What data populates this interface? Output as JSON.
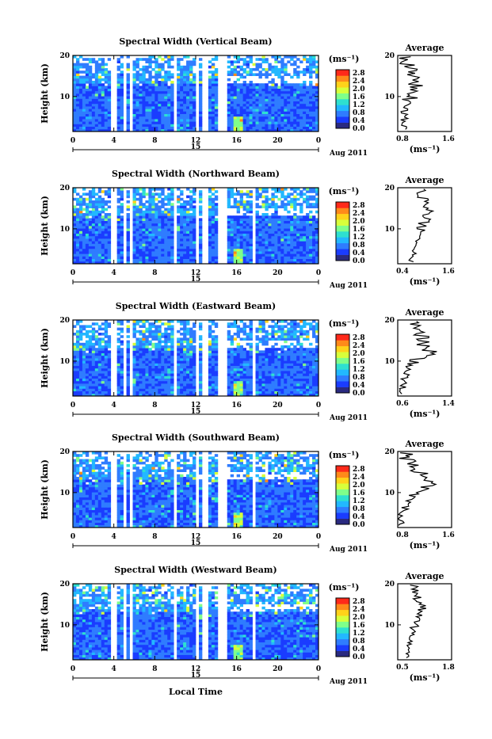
{
  "figure": {
    "x_axis_label": "Local Time",
    "date_label": "Aug 2011",
    "day_label": "15",
    "x_ticks": [
      "0",
      "4",
      "8",
      "12",
      "16",
      "20",
      "0"
    ],
    "y_label": "Height (km)",
    "y_ticks": [
      "20",
      "10"
    ],
    "colorbar_unit": "(ms⁻¹)",
    "colorbar_ticks": [
      "2.8",
      "2.4",
      "2.0",
      "1.6",
      "1.2",
      "0.8",
      "0.4",
      "0.0"
    ],
    "colormap": [
      "#2a2a80",
      "#1a3cff",
      "#2f7cff",
      "#22b8ff",
      "#2ee0d0",
      "#7fff8a",
      "#d8ff3a",
      "#ffd21a",
      "#ff8a1a",
      "#ff2a1a"
    ],
    "average_title": "Average",
    "average_unit": "(ms⁻¹)",
    "average_y_ticks": [
      "20",
      "10"
    ]
  },
  "chart_data": [
    {
      "type": "heatmap",
      "title": "Spectral Width (Vertical Beam)",
      "xlabel": "",
      "ylabel": "Height (km)",
      "xlim": [
        0,
        24
      ],
      "ylim": [
        1.5,
        20
      ],
      "colorbar_range": [
        0.0,
        2.8
      ],
      "data_gaps_hours": [
        [
          3.5,
          4.2
        ],
        [
          4.8,
          5.1
        ],
        [
          5.4,
          5.8
        ],
        [
          9.6,
          10.0
        ],
        [
          11.9,
          12.2
        ],
        [
          12.6,
          13.0
        ],
        [
          14.0,
          14.8
        ]
      ],
      "profile": {
        "title": "Average",
        "xlim_labels": [
          "0.8",
          "1.6"
        ],
        "heights_km": [
          2,
          4,
          6,
          8,
          10,
          12,
          14,
          16,
          18,
          20
        ],
        "values": [
          0.9,
          0.9,
          0.9,
          0.95,
          1.0,
          1.05,
          1.1,
          1.0,
          0.95,
          0.9
        ]
      }
    },
    {
      "type": "heatmap",
      "title": "Spectral Width (Northward Beam)",
      "xlabel": "",
      "ylabel": "Height (km)",
      "xlim": [
        0,
        24
      ],
      "ylim": [
        1.5,
        20
      ],
      "colorbar_range": [
        0.0,
        2.8
      ],
      "data_gaps_hours": [
        [
          3.5,
          4.2
        ],
        [
          4.8,
          5.1
        ],
        [
          5.4,
          5.8
        ],
        [
          9.6,
          10.0
        ],
        [
          11.9,
          12.2
        ],
        [
          12.6,
          13.0
        ],
        [
          14.0,
          14.8
        ],
        [
          17.5,
          17.8
        ]
      ],
      "profile": {
        "title": "Average",
        "xlim_labels": [
          "0.4",
          "1.6"
        ],
        "heights_km": [
          2,
          4,
          6,
          8,
          10,
          12,
          14,
          16,
          18,
          20
        ],
        "values": [
          0.7,
          0.75,
          0.8,
          0.85,
          0.9,
          1.0,
          1.1,
          1.0,
          0.95,
          0.9
        ]
      }
    },
    {
      "type": "heatmap",
      "title": "Spectral Width (Eastward Beam)",
      "xlabel": "",
      "ylabel": "Height (km)",
      "xlim": [
        0,
        24
      ],
      "ylim": [
        1.5,
        20
      ],
      "colorbar_range": [
        0.0,
        2.8
      ],
      "data_gaps_hours": [
        [
          3.5,
          4.2
        ],
        [
          4.8,
          5.1
        ],
        [
          5.4,
          5.8
        ],
        [
          9.6,
          10.0
        ],
        [
          11.9,
          12.2
        ],
        [
          12.6,
          13.0
        ],
        [
          14.0,
          14.8
        ],
        [
          17.5,
          17.8
        ]
      ],
      "profile": {
        "title": "Average",
        "xlim_labels": [
          "0.6",
          "1.4"
        ],
        "heights_km": [
          2,
          4,
          6,
          8,
          10,
          12,
          14,
          16,
          18,
          20
        ],
        "values": [
          0.65,
          0.7,
          0.7,
          0.75,
          0.85,
          1.1,
          1.0,
          0.95,
          0.9,
          0.9
        ]
      }
    },
    {
      "type": "heatmap",
      "title": "Spectral Width (Southward Beam)",
      "xlabel": "",
      "ylabel": "Height (km)",
      "xlim": [
        0,
        24
      ],
      "ylim": [
        1.5,
        20
      ],
      "colorbar_range": [
        0.0,
        2.8
      ],
      "data_gaps_hours": [
        [
          3.5,
          4.2
        ],
        [
          4.8,
          5.1
        ],
        [
          5.4,
          5.8
        ],
        [
          9.6,
          10.0
        ],
        [
          11.9,
          12.2
        ],
        [
          12.6,
          13.0
        ],
        [
          14.0,
          14.8
        ],
        [
          17.5,
          17.8
        ]
      ],
      "profile": {
        "title": "Average",
        "xlim_labels": [
          "0.8",
          "1.6"
        ],
        "heights_km": [
          2,
          4,
          6,
          8,
          10,
          12,
          14,
          16,
          18,
          20
        ],
        "values": [
          0.85,
          0.85,
          0.9,
          0.95,
          1.05,
          1.25,
          1.2,
          1.05,
          0.95,
          0.9
        ]
      }
    },
    {
      "type": "heatmap",
      "title": "Spectral Width (Westward Beam)",
      "xlabel": "Local Time",
      "ylabel": "Height (km)",
      "xlim": [
        0,
        24
      ],
      "ylim": [
        1.5,
        20
      ],
      "colorbar_range": [
        0.0,
        2.8
      ],
      "data_gaps_hours": [
        [
          3.5,
          4.2
        ],
        [
          4.8,
          5.1
        ],
        [
          5.4,
          5.8
        ],
        [
          9.6,
          10.0
        ],
        [
          11.9,
          12.2
        ],
        [
          12.6,
          13.0
        ],
        [
          14.0,
          14.8
        ],
        [
          17.5,
          17.8
        ]
      ],
      "profile": {
        "title": "Average",
        "xlim_labels": [
          "0.5",
          "1.8"
        ],
        "heights_km": [
          2,
          4,
          6,
          8,
          10,
          12,
          14,
          16,
          18,
          20
        ],
        "values": [
          0.75,
          0.75,
          0.8,
          0.85,
          0.95,
          1.05,
          1.1,
          1.0,
          0.95,
          0.9
        ]
      }
    }
  ]
}
